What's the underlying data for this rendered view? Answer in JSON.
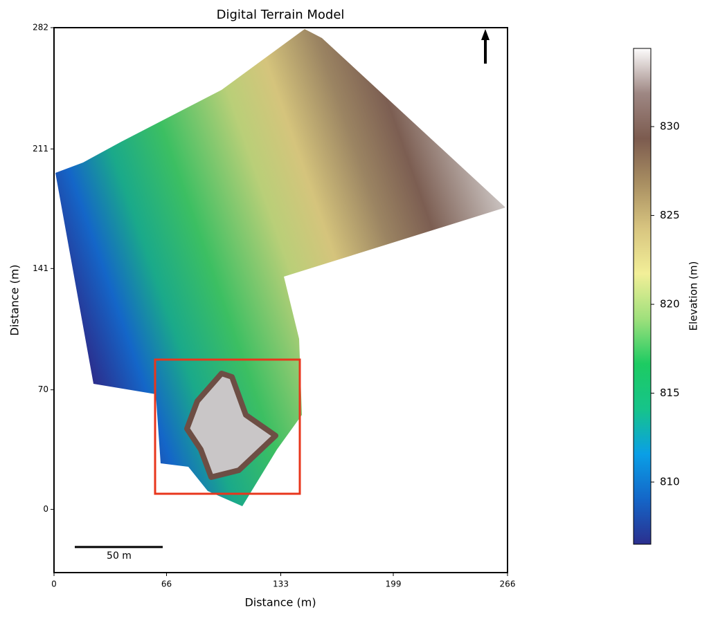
{
  "chart_data": {
    "type": "raster",
    "title": "Digital Terrain Model",
    "x_label": "Distance (m)",
    "y_label": "Distance (m)",
    "xlim": [
      0,
      266
    ],
    "xticks": [
      0,
      66,
      133,
      199,
      266
    ],
    "ylim": [
      -37,
      282
    ],
    "yticks": [
      0,
      70,
      141,
      211,
      282
    ],
    "scale_bar_label": "50 m",
    "colorbar": {
      "label": "Elevation (m)",
      "lim": [
        806.5,
        834.4
      ],
      "ticks": [
        810,
        815,
        820,
        825,
        830
      ],
      "colors": [
        "#2b2f8e",
        "#1466c8",
        "#0a9fe6",
        "#16c48a",
        "#1dcb62",
        "#9fe07c",
        "#f2ef98",
        "#d8c580",
        "#a98f62",
        "#7c5b4f",
        "#9e8783",
        "#fdfcfc"
      ]
    }
  }
}
